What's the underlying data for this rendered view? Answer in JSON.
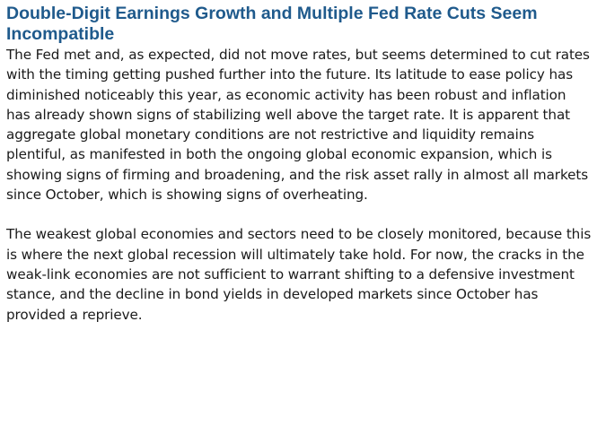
{
  "article": {
    "heading": "Double-Digit Earnings Growth and Multiple Fed Rate Cuts Seem Incompatible",
    "paragraphs": [
      "The Fed met and, as expected, did not move rates, but seems determined to cut rates with the timing getting pushed further into the future. Its latitude to ease policy has diminished noticeably this year, as economic activity has been robust and inflation has already shown signs of stabilizing well above the target rate. It is apparent that aggregate global monetary conditions are not restrictive and liquidity remains plentiful, as manifested in both the ongoing global economic expansion, which is showing signs of firming and broadening, and the risk asset rally in almost all markets since October, which is showing signs of overheating.",
      "The weakest global economies and sectors need to be closely monitored, because this is where the next global recession will ultimately take hold. For now, the cracks in the weak-link economies are not sufficient to warrant shifting to a defensive investment stance, and the decline in bond yields in developed markets since October has provided a reprieve."
    ]
  }
}
